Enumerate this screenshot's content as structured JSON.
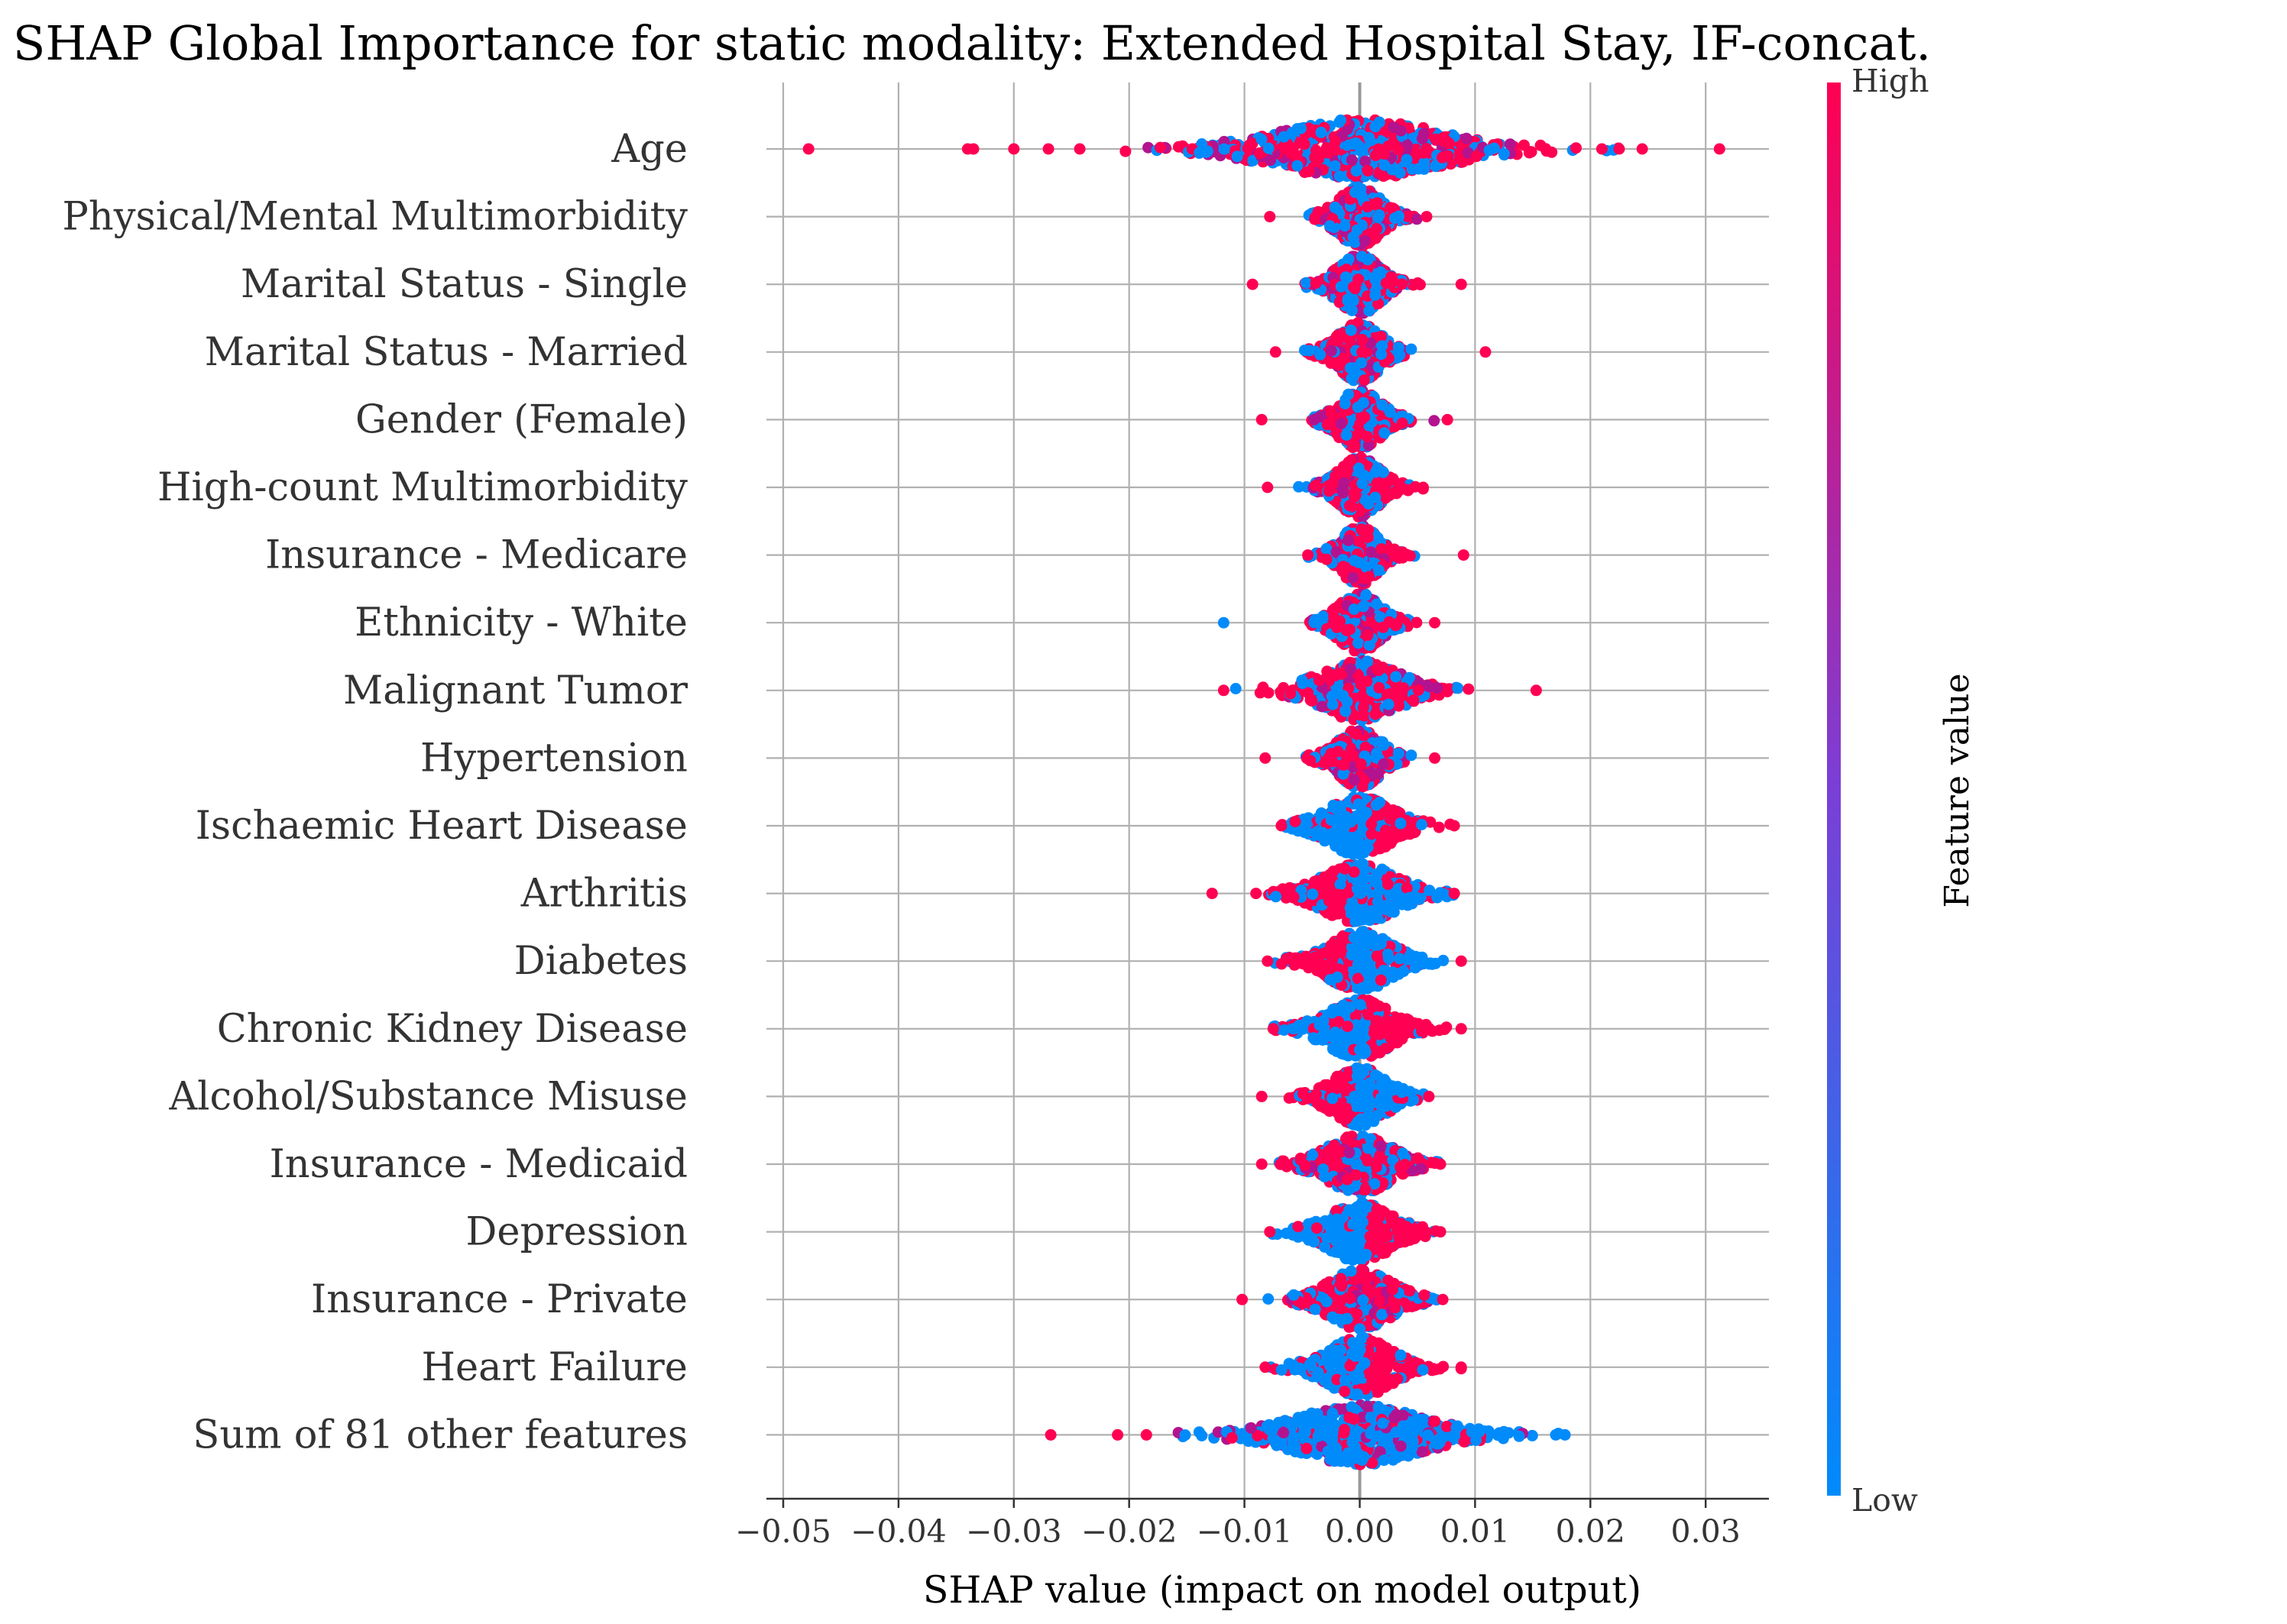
{
  "chart_data": {
    "type": "scatter",
    "title": "SHAP Global Importance for static modality: Extended Hospital Stay, IF-concat.",
    "xlabel": "SHAP value (impact on model output)",
    "ylabel": "",
    "xlim": [
      -0.052,
      0.035
    ],
    "xticks": [
      -0.05,
      -0.04,
      -0.03,
      -0.02,
      -0.01,
      0.0,
      0.01,
      0.02,
      0.03
    ],
    "xtick_labels": [
      "−0.05",
      "−0.04",
      "−0.03",
      "−0.02",
      "−0.01",
      "0.00",
      "0.01",
      "0.02",
      "0.03"
    ],
    "grid": true,
    "colorbar": {
      "label": "Feature value",
      "high_label": "High",
      "low_label": "Low",
      "high_color": "#ff0052",
      "low_color": "#008bfb"
    },
    "features": [
      {
        "name": "Age",
        "min": -0.048,
        "max": 0.031,
        "spread": 0.0155,
        "extreme_points": [
          -0.0478,
          -0.034,
          -0.0335,
          -0.03,
          -0.027,
          0.021,
          0.0225,
          0.0245,
          0.0312
        ],
        "high_side": "mixed"
      },
      {
        "name": "Physical/Mental Multimorbidity",
        "min": -0.008,
        "max": 0.006,
        "spread": 0.004,
        "extreme_points": [
          -0.0078,
          0.0058
        ],
        "high_side": "mixed"
      },
      {
        "name": "Marital Status - Single",
        "min": -0.0095,
        "max": 0.009,
        "spread": 0.004,
        "extreme_points": [
          -0.0093,
          0.0088
        ],
        "high_side": "mixed"
      },
      {
        "name": "Marital Status - Married",
        "min": -0.0075,
        "max": 0.011,
        "spread": 0.004,
        "extreme_points": [
          -0.0073,
          0.0109
        ],
        "high_side": "mixed"
      },
      {
        "name": "Gender (Female)",
        "min": -0.0085,
        "max": 0.0075,
        "spread": 0.004,
        "extreme_points": [
          -0.0085,
          0.0076
        ],
        "high_side": "mixed"
      },
      {
        "name": "High-count Multimorbidity",
        "min": -0.008,
        "max": 0.0055,
        "spread": 0.004,
        "extreme_points": [
          -0.008,
          0.0055
        ],
        "high_side": "mixed"
      },
      {
        "name": "Insurance - Medicare",
        "min": -0.0045,
        "max": 0.009,
        "spread": 0.0035,
        "extreme_points": [
          -0.0045,
          0.009
        ],
        "high_side": "mixed"
      },
      {
        "name": "Ethnicity - White",
        "min": -0.012,
        "max": 0.0065,
        "spread": 0.004,
        "extreme_points": [
          -0.0118,
          0.0065
        ],
        "high_side": "mixed"
      },
      {
        "name": "Malignant Tumor",
        "min": -0.012,
        "max": 0.0153,
        "spread": 0.0075,
        "extreme_points": [
          -0.0118,
          0.0153
        ],
        "high_side": "mixed"
      },
      {
        "name": "Hypertension",
        "min": -0.0082,
        "max": 0.0065,
        "spread": 0.004,
        "extreme_points": [
          -0.0082,
          0.0065
        ],
        "high_side": "mixed"
      },
      {
        "name": "Ischaemic Heart Disease",
        "min": -0.0068,
        "max": 0.0082,
        "spread": 0.006,
        "extreme_points": [
          -0.0068,
          0.0082
        ],
        "high_side": "right"
      },
      {
        "name": "Arthritis",
        "min": -0.0128,
        "max": 0.0082,
        "spread": 0.007,
        "extreme_points": [
          -0.0128,
          0.0082
        ],
        "high_side": "left"
      },
      {
        "name": "Diabetes",
        "min": -0.008,
        "max": 0.0088,
        "spread": 0.006,
        "extreme_points": [
          -0.008,
          0.0088
        ],
        "high_side": "left"
      },
      {
        "name": "Chronic Kidney Disease",
        "min": -0.0075,
        "max": 0.0088,
        "spread": 0.006,
        "extreme_points": [
          -0.0075,
          0.0088
        ],
        "high_side": "right"
      },
      {
        "name": "Alcohol/Substance Misuse",
        "min": -0.0085,
        "max": 0.006,
        "spread": 0.005,
        "extreme_points": [
          -0.0085,
          0.006
        ],
        "high_side": "left"
      },
      {
        "name": "Insurance - Medicaid",
        "min": -0.0085,
        "max": 0.007,
        "spread": 0.006,
        "extreme_points": [
          -0.0085,
          0.007
        ],
        "high_side": "mixed"
      },
      {
        "name": "Depression",
        "min": -0.0078,
        "max": 0.007,
        "spread": 0.006,
        "extreme_points": [
          -0.0078,
          0.007
        ],
        "high_side": "right"
      },
      {
        "name": "Insurance - Private",
        "min": -0.0102,
        "max": 0.0072,
        "spread": 0.006,
        "extreme_points": [
          -0.0102,
          0.0072
        ],
        "high_side": "mixed"
      },
      {
        "name": "Heart Failure",
        "min": -0.0082,
        "max": 0.0088,
        "spread": 0.006,
        "extreme_points": [
          -0.0082,
          0.0088
        ],
        "high_side": "right"
      },
      {
        "name": "Sum of 81 other features",
        "min": -0.027,
        "max": 0.018,
        "spread": 0.012,
        "extreme_points": [
          -0.0268,
          -0.021,
          -0.0185,
          0.017,
          0.0178
        ],
        "high_side": "mixed"
      }
    ]
  }
}
